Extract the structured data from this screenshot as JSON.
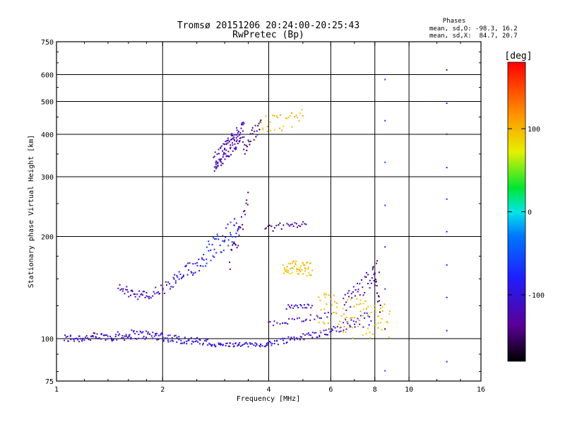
{
  "chart_data": {
    "type": "scatter",
    "title": "Tromsø 20151206 20:24:00-20:25:43",
    "subtitle": "RwPretec (Bp)",
    "xlabel": "Frequency [MHz]",
    "ylabel": "Stationary phase Virtual Height [km]",
    "x_scale": "log2",
    "y_scale": "log",
    "xlim": [
      1,
      16
    ],
    "ylim": [
      75,
      750
    ],
    "x_ticks": [
      "1",
      "2",
      "4",
      "6",
      "8",
      "10",
      "16"
    ],
    "x_tick_values": [
      1,
      2,
      4,
      6,
      8,
      10,
      16
    ],
    "y_ticks": [
      "75",
      "100",
      "200",
      "300",
      "400",
      "500",
      "600",
      "750"
    ],
    "y_tick_values": [
      75,
      100,
      200,
      300,
      400,
      500,
      600,
      750
    ],
    "grid_x": [
      2,
      4,
      6,
      8,
      10
    ],
    "grid_y": [
      100,
      200,
      300,
      400,
      500,
      600
    ],
    "stats": {
      "heading": "Phases",
      "line1": "mean, sd,O: -98.3, 16.2",
      "line2": "mean, sd,X:  84.7, 20.7"
    },
    "colorbar": {
      "label": "[deg]",
      "range": [
        -180,
        180
      ],
      "ticks": [
        "100",
        "0",
        "-100"
      ],
      "tick_values": [
        100,
        0,
        -100
      ]
    },
    "traces": [
      {
        "from": [
          1.05,
          100
        ],
        "to": [
          1.6,
          102
        ],
        "count": 70,
        "phase": -110,
        "jitter": 0.013
      },
      {
        "from": [
          1.6,
          103
        ],
        "to": [
          2.0,
          102
        ],
        "count": 40,
        "phase": -105,
        "jitter": 0.014
      },
      {
        "from": [
          2.0,
          101
        ],
        "to": [
          2.7,
          97
        ],
        "count": 50,
        "phase": -100,
        "jitter": 0.012
      },
      {
        "from": [
          2.7,
          96
        ],
        "to": [
          4.0,
          96
        ],
        "count": 60,
        "phase": -100,
        "jitter": 0.006
      },
      {
        "from": [
          4.0,
          97
        ],
        "to": [
          6.0,
          105
        ],
        "count": 50,
        "phase": -98,
        "jitter": 0.01
      },
      {
        "from": [
          6.0,
          106
        ],
        "to": [
          7.8,
          115
        ],
        "count": 35,
        "phase": -92,
        "jitter": 0.02
      },
      {
        "from": [
          1.5,
          140
        ],
        "to": [
          1.8,
          133
        ],
        "count": 30,
        "phase": -115,
        "jitter": 0.015
      },
      {
        "from": [
          1.8,
          133
        ],
        "to": [
          2.15,
          145
        ],
        "count": 25,
        "phase": -110,
        "jitter": 0.018
      },
      {
        "from": [
          2.15,
          147
        ],
        "to": [
          2.6,
          170
        ],
        "count": 35,
        "phase": -100,
        "jitter": 0.025
      },
      {
        "from": [
          2.6,
          175
        ],
        "to": [
          3.3,
          215
        ],
        "count": 50,
        "phase": -70,
        "jitter": 0.035
      },
      {
        "from": [
          3.1,
          165
        ],
        "to": [
          3.5,
          255
        ],
        "count": 25,
        "phase": -140,
        "jitter": 0.03
      },
      {
        "from": [
          3.9,
          210
        ],
        "to": [
          4.4,
          215
        ],
        "count": 12,
        "phase": -150,
        "jitter": 0.01
      },
      {
        "from": [
          4.5,
          215
        ],
        "to": [
          5.1,
          218
        ],
        "count": 15,
        "phase": -120,
        "jitter": 0.008
      },
      {
        "from": [
          2.8,
          330
        ],
        "to": [
          3.4,
          410
        ],
        "count": 110,
        "phase": -120,
        "jitter": 0.03
      },
      {
        "from": [
          3.4,
          360
        ],
        "to": [
          3.8,
          440
        ],
        "count": 25,
        "phase": -150,
        "jitter": 0.025
      },
      {
        "from": [
          3.8,
          420
        ],
        "to": [
          5.0,
          450
        ],
        "count": 30,
        "phase": 100,
        "jitter": 0.03
      },
      {
        "from": [
          4.4,
          163
        ],
        "to": [
          5.3,
          160
        ],
        "count": 55,
        "phase": 95,
        "jitter": 0.02
      },
      {
        "from": [
          4.5,
          124
        ],
        "to": [
          5.3,
          125
        ],
        "count": 20,
        "phase": -110,
        "jitter": 0.006
      },
      {
        "from": [
          4.0,
          110
        ],
        "to": [
          6.0,
          118
        ],
        "count": 30,
        "phase": -108,
        "jitter": 0.008
      },
      {
        "from": [
          5.5,
          120
        ],
        "to": [
          8.8,
          110
        ],
        "count": 90,
        "phase": 100,
        "jitter": 0.06
      },
      {
        "from": [
          6.5,
          125
        ],
        "to": [
          8.2,
          160
        ],
        "count": 40,
        "phase": -120,
        "jitter": 0.03
      },
      {
        "from": [
          7.9,
          160
        ],
        "to": [
          8.3,
          120
        ],
        "count": 15,
        "phase": -150,
        "jitter": 0.02
      },
      {
        "from": [
          8.55,
          80
        ],
        "to": [
          8.55,
          580
        ],
        "count": 8,
        "phase": -60,
        "jitter": 0.003
      },
      {
        "from": [
          12.8,
          85
        ],
        "to": [
          12.8,
          620
        ],
        "count": 10,
        "phase": -100,
        "jitter": 0.003
      }
    ]
  }
}
